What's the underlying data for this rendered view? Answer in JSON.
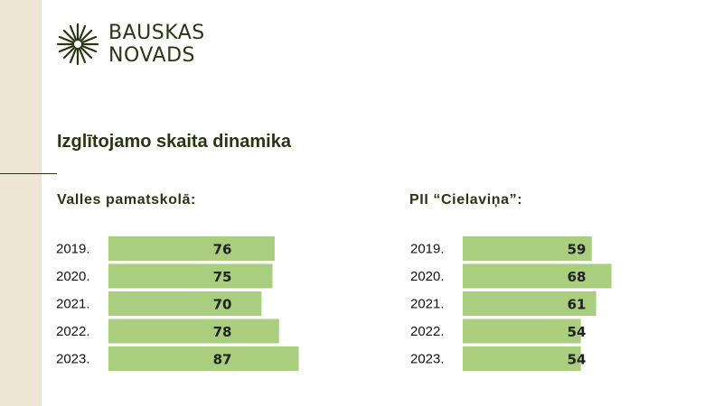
{
  "brand": {
    "line1": "BAUSKAS",
    "line2": "NOVADS",
    "color": "#2b3512"
  },
  "page_title": "Izglītojamo skaita dinamika",
  "colors": {
    "bar": "#a9ce7e",
    "accent_strip": "#efe6d6"
  },
  "chart_data": [
    {
      "type": "bar",
      "orientation": "horizontal",
      "title": "Valles pamatskolā:",
      "categories": [
        "2019.",
        "2020.",
        "2021.",
        "2022.",
        "2023."
      ],
      "values": [
        76,
        75,
        70,
        78,
        87
      ],
      "grid": false
    },
    {
      "type": "bar",
      "orientation": "horizontal",
      "title": "PII “Cielaviņa”:",
      "categories": [
        "2019.",
        "2020.",
        "2021.",
        "2022.",
        "2023."
      ],
      "values": [
        59,
        68,
        61,
        54,
        54
      ],
      "grid": false
    }
  ]
}
